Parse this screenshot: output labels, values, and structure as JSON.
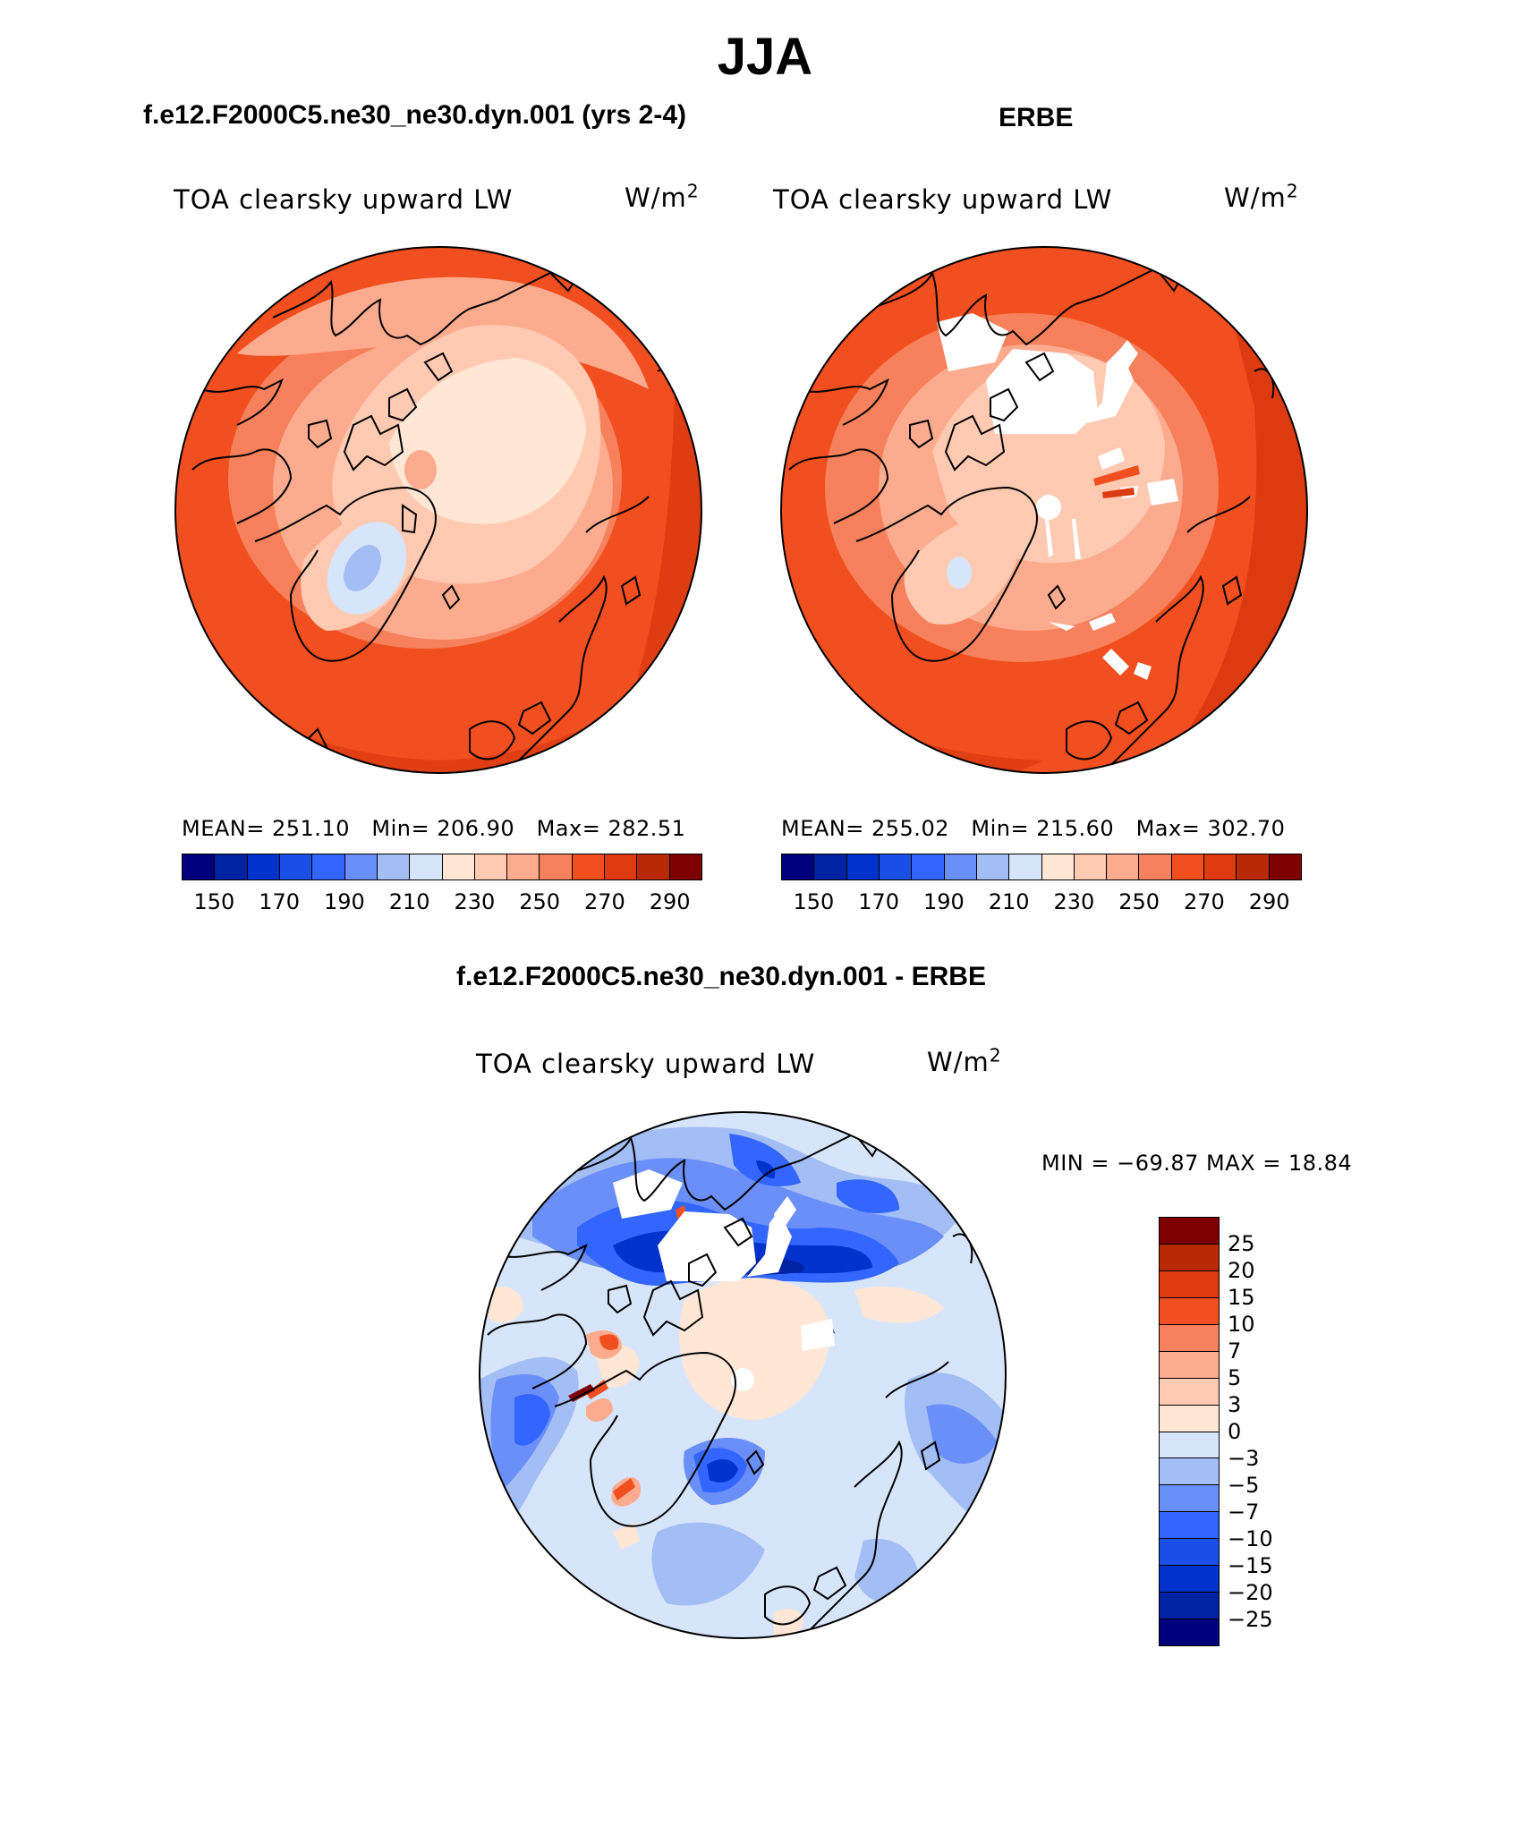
{
  "figure": {
    "title": "JJA",
    "left_panel_title": "f.e12.F2000C5.ne30_ne30.dyn.001 (yrs 2-4)",
    "right_panel_title": "ERBE",
    "diff_panel_title": "f.e12.F2000C5.ne30_ne30.dyn.001 - ERBE",
    "variable": "TOA clearsky upward LW",
    "units_base": "W/m",
    "units_exp": "2"
  },
  "chart_data": [
    {
      "type": "heatmap",
      "projection": "north polar stereographic",
      "panel": "model",
      "title": "f.e12.F2000C5.ne30_ne30.dyn.001 (yrs 2-4)",
      "variable": "TOA clearsky upward LW",
      "units": "W/m^2",
      "stats": {
        "mean_label": "MEAN=",
        "mean": "251.10",
        "min_label": "Min=",
        "min": "206.90",
        "max_label": "Max=",
        "max": "282.51"
      },
      "colorbar": {
        "ticks": [
          "150",
          "170",
          "190",
          "210",
          "230",
          "250",
          "270",
          "290"
        ],
        "colors": [
          "#00007f",
          "#0022a3",
          "#0033cc",
          "#1a4fe6",
          "#3366ff",
          "#6b8ff8",
          "#a3bdf5",
          "#d7e5fb",
          "#ffe6d5",
          "#ffcab1",
          "#fcab8f",
          "#f6815c",
          "#f14f20",
          "#dc3a10",
          "#b82a06",
          "#7f0000"
        ]
      },
      "value_range": [
        206.9,
        282.51
      ]
    },
    {
      "type": "heatmap",
      "projection": "north polar stereographic",
      "panel": "observations",
      "title": "ERBE",
      "variable": "TOA clearsky upward LW",
      "units": "W/m^2",
      "stats": {
        "mean_label": "MEAN=",
        "mean": "255.02",
        "min_label": "Min=",
        "min": "215.60",
        "max_label": "Max=",
        "max": "302.70"
      },
      "colorbar": {
        "ticks": [
          "150",
          "170",
          "190",
          "210",
          "230",
          "250",
          "270",
          "290"
        ],
        "colors": [
          "#00007f",
          "#0022a3",
          "#0033cc",
          "#1a4fe6",
          "#3366ff",
          "#6b8ff8",
          "#a3bdf5",
          "#d7e5fb",
          "#ffe6d5",
          "#ffcab1",
          "#fcab8f",
          "#f6815c",
          "#f14f20",
          "#dc3a10",
          "#b82a06",
          "#7f0000"
        ]
      },
      "value_range": [
        215.6,
        302.7
      ]
    },
    {
      "type": "heatmap",
      "projection": "north polar stereographic",
      "panel": "difference",
      "title": "f.e12.F2000C5.ne30_ne30.dyn.001 - ERBE",
      "variable": "TOA clearsky upward LW",
      "units": "W/m^2",
      "stats_text": "MIN = −69.87 MAX =   18.84",
      "min": -69.87,
      "max": 18.84,
      "colorbar": {
        "ticks": [
          "25",
          "20",
          "15",
          "10",
          "7",
          "5",
          "3",
          "0",
          "−3",
          "−5",
          "−7",
          "−10",
          "−15",
          "−20",
          "−25"
        ],
        "colors": [
          "#7f0000",
          "#b82a06",
          "#dc3a10",
          "#f14f20",
          "#f6815c",
          "#fcab8f",
          "#ffcab1",
          "#ffe6d5",
          "#d7e5fb",
          "#a3bdf5",
          "#6b8ff8",
          "#3366ff",
          "#1a4fe6",
          "#0033cc",
          "#0022a3",
          "#00007f"
        ]
      }
    }
  ]
}
